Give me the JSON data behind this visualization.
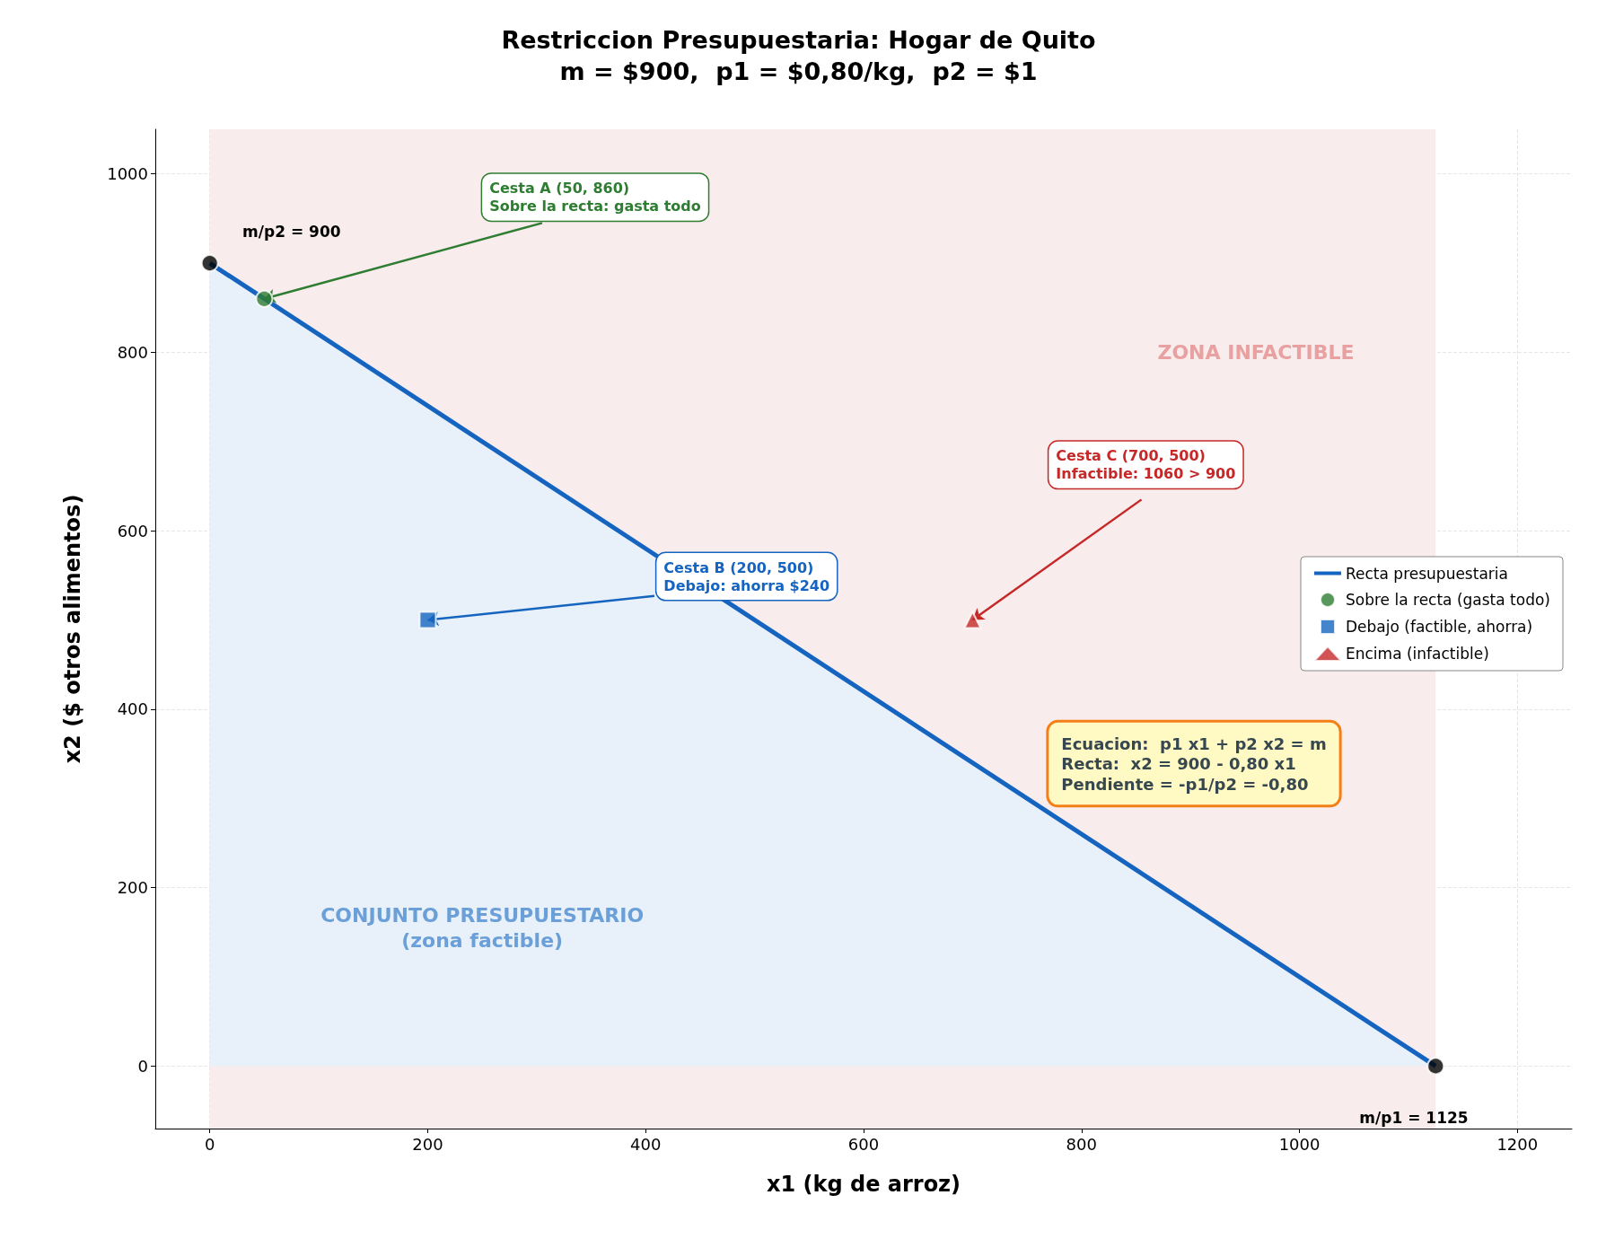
{
  "chart_data": {
    "type": "area",
    "title": "Restriccion Presupuestaria: Hogar de Quito",
    "subtitle": "m = $900,  p1 = $0,80/kg,  p2 = $1",
    "xlabel": "x1 (kg de arroz)",
    "ylabel": "x2 ($ otros alimentos)",
    "xlim": [
      -50,
      1250
    ],
    "xticks": [
      0,
      200,
      400,
      600,
      800,
      1000,
      1200
    ],
    "ylim": [
      -70,
      1050
    ],
    "yticks": [
      0,
      200,
      400,
      600,
      800,
      1000
    ],
    "grid": true,
    "legend": "right",
    "series": [
      {
        "name": "Recta presupuestaria",
        "x": [
          0,
          1125
        ],
        "values": [
          900,
          0
        ],
        "color": "#1565c0",
        "marker": "none"
      },
      {
        "name": "Sobre la recta (gasta todo)",
        "type": "scatter",
        "x": [
          50
        ],
        "values": [
          860
        ],
        "color": "#2e7d32",
        "marker": "circle"
      },
      {
        "name": "Debajo (factible, ahorra)",
        "type": "scatter",
        "x": [
          200
        ],
        "values": [
          500
        ],
        "color": "#1565c0",
        "marker": "square"
      },
      {
        "name": "Encima (infactible)",
        "type": "scatter",
        "x": [
          700
        ],
        "values": [
          500
        ],
        "color": "#c62828",
        "marker": "triangle"
      },
      {
        "type": "scatter",
        "x": [
          0,
          1125
        ],
        "values": [
          900,
          0
        ],
        "color": "#000000",
        "marker": "circle"
      }
    ],
    "bands": [
      {
        "axis": "x",
        "from": 0,
        "to": 1125,
        "color": "#f9ecec"
      }
    ],
    "annotations": [
      {
        "text": "m/p2 = 900",
        "x": 0,
        "y": 900
      },
      {
        "text": "m/p1 = 1125",
        "x": 1125,
        "y": 0
      },
      {
        "text": "Cesta A (50, 860)\nSobre la recta: gasta todo",
        "x": 50,
        "y": 860
      },
      {
        "text": "Cesta B (200, 500)\nDebajo: ahorra $240",
        "x": 200,
        "y": 500
      },
      {
        "text": "Cesta C (700, 500)\nInfactible: 1060 > 900",
        "x": 700,
        "y": 500
      },
      "ZONA INFACTIBLE",
      "CONJUNTO PRESUPUESTARIO\n(zona factible)",
      "Ecuacion:  p1 x1 + p2 x2 = m\nRecta:  x2 = 900 - 0,80 x1\nPendiente = -p1/p2 = -0,80"
    ]
  }
}
